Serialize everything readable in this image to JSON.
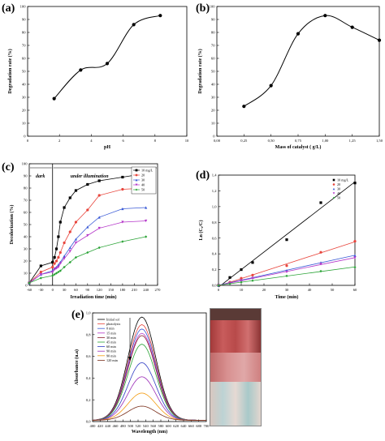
{
  "panels": {
    "a": {
      "label": "(a)"
    },
    "b": {
      "label": "(b)"
    },
    "c": {
      "label": "(c)"
    },
    "d": {
      "label": "(d)"
    },
    "e": {
      "label": "(e)"
    }
  },
  "chart_data": [
    {
      "id": "a",
      "type": "line",
      "xlabel": "pH",
      "ylabel": "Degradation rate (%)",
      "x": [
        2,
        4,
        6,
        8,
        10
      ],
      "series": [
        {
          "values": [
            29,
            51,
            56,
            86,
            93
          ]
        }
      ],
      "xlim": [
        0,
        12
      ],
      "ylim": [
        0,
        100
      ],
      "xticks": [
        "0",
        "2",
        "4",
        "6",
        "8",
        "10"
      ],
      "yticks": [
        "0",
        "10",
        "20",
        "30",
        "40",
        "50",
        "60",
        "70",
        "80",
        "90",
        "100"
      ]
    },
    {
      "id": "b",
      "type": "line",
      "xlabel": "Mass of catalyst ( g/L)",
      "ylabel": "Degradation rate (%)",
      "x": [
        0.25,
        0.5,
        0.75,
        1.0,
        1.25,
        1.5
      ],
      "series": [
        {
          "values": [
            23,
            39,
            79,
            93,
            84,
            74
          ]
        }
      ],
      "xlim": [
        0,
        1.5
      ],
      "ylim": [
        0,
        100
      ],
      "xticks": [
        "0,00",
        "0,25",
        "0,50",
        "0,75",
        "1,00",
        "1,25",
        "1,50"
      ],
      "yticks": [
        "0",
        "10",
        "20",
        "30",
        "40",
        "50",
        "60",
        "70",
        "80",
        "90",
        "100"
      ]
    },
    {
      "id": "c",
      "type": "line",
      "xlabel": "Irradiation time (min)",
      "ylabel": "Decolorization (%)",
      "xlim": [
        -60,
        270
      ],
      "ylim": [
        0,
        100
      ],
      "xticks": [
        "-60",
        "-30",
        "0",
        "30",
        "60",
        "90",
        "120",
        "150",
        "180",
        "210",
        "240",
        "270"
      ],
      "yticks": [
        "0",
        "10",
        "20",
        "30",
        "40",
        "50",
        "60",
        "70",
        "80",
        "90",
        "100"
      ],
      "annotations": [
        "dark",
        "under illumination"
      ],
      "legend_position": "top-right",
      "series": [
        {
          "name": "10 mg/L",
          "color": "#000000",
          "marker": "square",
          "x": [
            -60,
            -30,
            0,
            5,
            10,
            15,
            20,
            30,
            45,
            60,
            90,
            120,
            180,
            240
          ],
          "values": [
            2,
            16,
            19,
            23,
            30,
            40,
            52,
            64,
            72,
            78,
            83,
            86,
            89,
            92
          ]
        },
        {
          "name": "20",
          "color": "#e8453c",
          "marker": "circle",
          "x": [
            -60,
            -30,
            0,
            5,
            10,
            15,
            20,
            30,
            45,
            60,
            90,
            120,
            180,
            240
          ],
          "values": [
            2,
            11,
            15,
            18,
            20,
            23,
            27,
            35,
            44,
            52,
            62,
            74,
            79,
            80
          ]
        },
        {
          "name": "30",
          "color": "#3b5bd6",
          "marker": "triangle-up",
          "x": [
            -60,
            -30,
            0,
            5,
            10,
            15,
            20,
            30,
            45,
            60,
            90,
            120,
            180,
            240
          ],
          "values": [
            2,
            9,
            12,
            14,
            15,
            17,
            19,
            24,
            31,
            38,
            48,
            56,
            63,
            64
          ]
        },
        {
          "name": "40",
          "color": "#b536c9",
          "marker": "triangle-down",
          "x": [
            -60,
            -30,
            0,
            5,
            10,
            15,
            20,
            30,
            45,
            60,
            90,
            120,
            180,
            240
          ],
          "values": [
            2,
            9,
            11,
            13,
            14,
            15,
            18,
            22,
            28,
            35,
            41,
            47,
            52,
            53
          ]
        },
        {
          "name": "50",
          "color": "#2aa336",
          "marker": "diamond",
          "x": [
            -60,
            -30,
            0,
            5,
            10,
            15,
            20,
            30,
            45,
            60,
            90,
            120,
            180,
            240
          ],
          "values": [
            2,
            6,
            8,
            9,
            10,
            11,
            12,
            15,
            19,
            23,
            27,
            31,
            36,
            40
          ]
        }
      ]
    },
    {
      "id": "d",
      "type": "scatter",
      "xlabel": "Time (min)",
      "ylabel": "Ln (C₀/C)",
      "xlim": [
        0,
        60
      ],
      "ylim": [
        0,
        1.4
      ],
      "xticks": [
        "0",
        "10",
        "20",
        "30",
        "40",
        "50",
        "60"
      ],
      "yticks": [
        "0,0",
        "0,2",
        "0,4",
        "0,6",
        "0,8",
        "1,0",
        "1,2",
        "1,4"
      ],
      "legend_position": "top-right",
      "series": [
        {
          "name": "10 mg/L",
          "color": "#000000",
          "marker": "square",
          "x": [
            0,
            5,
            10,
            15,
            30,
            45,
            60
          ],
          "values": [
            0,
            0.1,
            0.2,
            0.29,
            0.58,
            1.05,
            1.3
          ]
        },
        {
          "name": "20",
          "color": "#e8453c",
          "marker": "circle",
          "x": [
            0,
            5,
            10,
            15,
            30,
            45,
            60
          ],
          "values": [
            0,
            0.04,
            0.09,
            0.13,
            0.25,
            0.42,
            0.56
          ]
        },
        {
          "name": "30",
          "color": "#3b5bd6",
          "marker": "triangle-up",
          "x": [
            0,
            5,
            10,
            15,
            30,
            45,
            60
          ],
          "values": [
            0,
            0.03,
            0.07,
            0.1,
            0.19,
            0.29,
            0.38
          ]
        },
        {
          "name": "40",
          "color": "#b536c9",
          "marker": "triangle-down",
          "x": [
            0,
            5,
            10,
            15,
            30,
            45,
            60
          ],
          "values": [
            0,
            0.03,
            0.06,
            0.09,
            0.17,
            0.27,
            0.35
          ]
        },
        {
          "name": "50",
          "color": "#2aa336",
          "marker": "diamond",
          "x": [
            0,
            5,
            10,
            15,
            30,
            45,
            60
          ],
          "values": [
            0,
            0.02,
            0.04,
            0.06,
            0.12,
            0.18,
            0.23
          ]
        }
      ]
    },
    {
      "id": "e",
      "type": "line",
      "xlabel": "Wavelength (nm)",
      "ylabel": "Absorbance (u.a)",
      "xlim": [
        400,
        700
      ],
      "ylim": [
        0,
        1.0
      ],
      "xticks": [
        "400",
        "420",
        "440",
        "460",
        "480",
        "500",
        "520",
        "540",
        "560",
        "580",
        "600",
        "620",
        "640",
        "660",
        "680",
        "700"
      ],
      "yticks": [
        "0,0",
        "0,2",
        "0,4",
        "0,6",
        "0,8",
        "1,0"
      ],
      "peak_nm": 530,
      "legend_position": "top-left",
      "series": [
        {
          "name": "Initial sol",
          "color": "#000000",
          "peak": 0.95
        },
        {
          "name": "photolysis",
          "color": "#e8453c",
          "peak": 0.88
        },
        {
          "name": "0 min",
          "color": "#3b5bd6",
          "peak": 0.84
        },
        {
          "name": "15 min",
          "color": "#b536c9",
          "peak": 0.8
        },
        {
          "name": "30 min",
          "color": "#8c1e2d",
          "peak": 0.78
        },
        {
          "name": "45 min",
          "color": "#2aa336",
          "peak": 0.7
        },
        {
          "name": "60 min",
          "color": "#2f3cc4",
          "peak": 0.53
        },
        {
          "name": "90 min",
          "color": "#9c2fb8",
          "peak": 0.4
        },
        {
          "name": "90 min",
          "color": "#f39c12",
          "peak": 0.25
        },
        {
          "name": "120 min",
          "color": "#7a2e1a",
          "peak": 0.13
        }
      ]
    }
  ]
}
